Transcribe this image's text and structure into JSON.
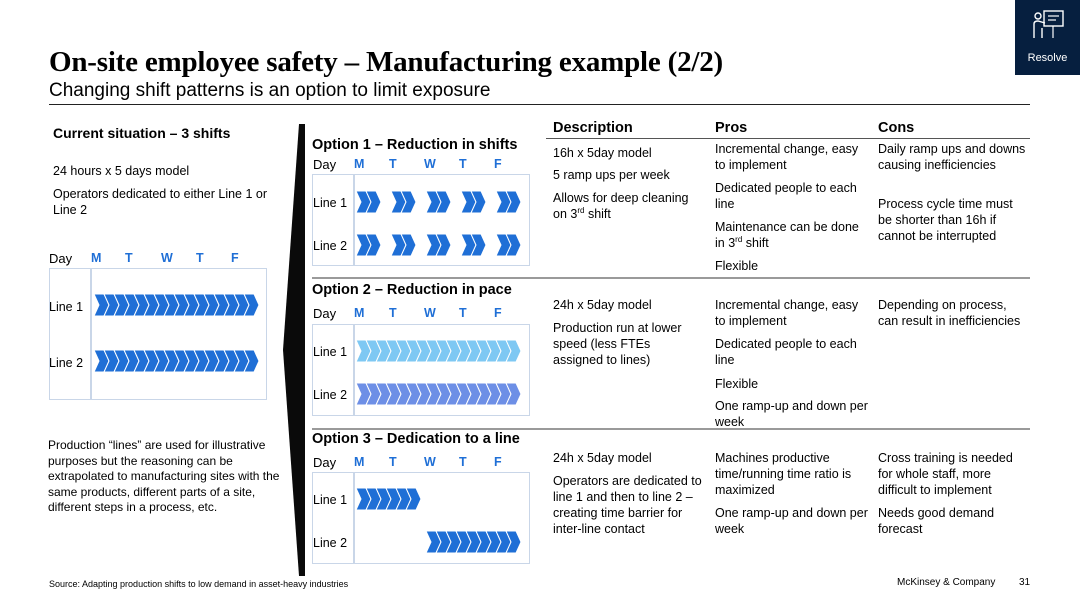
{
  "title": "On-site employee safety – Manufacturing example (2/2)",
  "subtitle": "Changing shift patterns is an option to limit exposure",
  "resolve": {
    "label": "Resolve",
    "icon": "presenter-board-icon"
  },
  "current": {
    "heading": "Current situation – 3 shifts",
    "model": "24 hours x 5 days model",
    "operators": "Operators dedicated to either Line 1 or Line 2",
    "day_label": "Day",
    "days": [
      "M",
      "T",
      "W",
      "T",
      "F"
    ],
    "line1": "Line 1",
    "line2": "Line 2",
    "note": "Production “lines” are used for illustrative purposes but the reasoning can be extrapolated to manufacturing sites with the same products, different parts of a site, different steps in a process, etc."
  },
  "columns": {
    "description": "Description",
    "pros": "Pros",
    "cons": "Cons"
  },
  "options": [
    {
      "title": "Option 1 – Reduction in shifts",
      "day_label": "Day",
      "days": [
        "M",
        "T",
        "W",
        "T",
        "F"
      ],
      "line1": "Line 1",
      "line2": "Line 2",
      "description": [
        "16h x 5day model",
        "5 ramp ups per week",
        "Allows for deep cleaning on 3rd shift"
      ],
      "pros": [
        "Incremental change, easy to implement",
        "Dedicated people to each line",
        "Maintenance can be done in 3rd shift",
        "Flexible"
      ],
      "cons": [
        "Daily ramp ups and downs causing inefficiencies",
        "Process cycle time must be shorter than 16h if cannot be interrupted"
      ]
    },
    {
      "title": "Option 2 – Reduction in pace",
      "day_label": "Day",
      "days": [
        "M",
        "T",
        "W",
        "T",
        "F"
      ],
      "line1": "Line 1",
      "line2": "Line 2",
      "description": [
        "24h x 5day model",
        "Production run at lower speed (less FTEs assigned to lines)"
      ],
      "pros": [
        "Incremental change, easy to implement",
        "Dedicated people to each line",
        "Flexible",
        "One ramp-up and down per week"
      ],
      "cons": [
        "Depending on process, can result in inefficiencies"
      ]
    },
    {
      "title": "Option 3 – Dedication to a line",
      "day_label": "Day",
      "days": [
        "M",
        "T",
        "W",
        "T",
        "F"
      ],
      "line1": "Line 1",
      "line2": "Line 2",
      "description": [
        "24h x 5day model",
        "Operators are dedicated to line 1 and then to line 2 – creating time barrier for inter-line contact"
      ],
      "pros": [
        "Machines productive time/running time ratio is maximized",
        "One ramp-up and down per week"
      ],
      "cons": [
        "Cross training is needed for whole staff, more difficult to implement",
        "Needs good demand forecast"
      ]
    }
  ],
  "footer": {
    "source": "Source: Adapting production shifts to low demand in asset-heavy industries",
    "company": "McKinsey & Company",
    "page": "31"
  },
  "colors": {
    "chevron_blue": "#1f6fd6",
    "chevron_light": "#7ec8f3",
    "chevron_mid": "#6d8fe6",
    "navy": "#061f3f"
  }
}
